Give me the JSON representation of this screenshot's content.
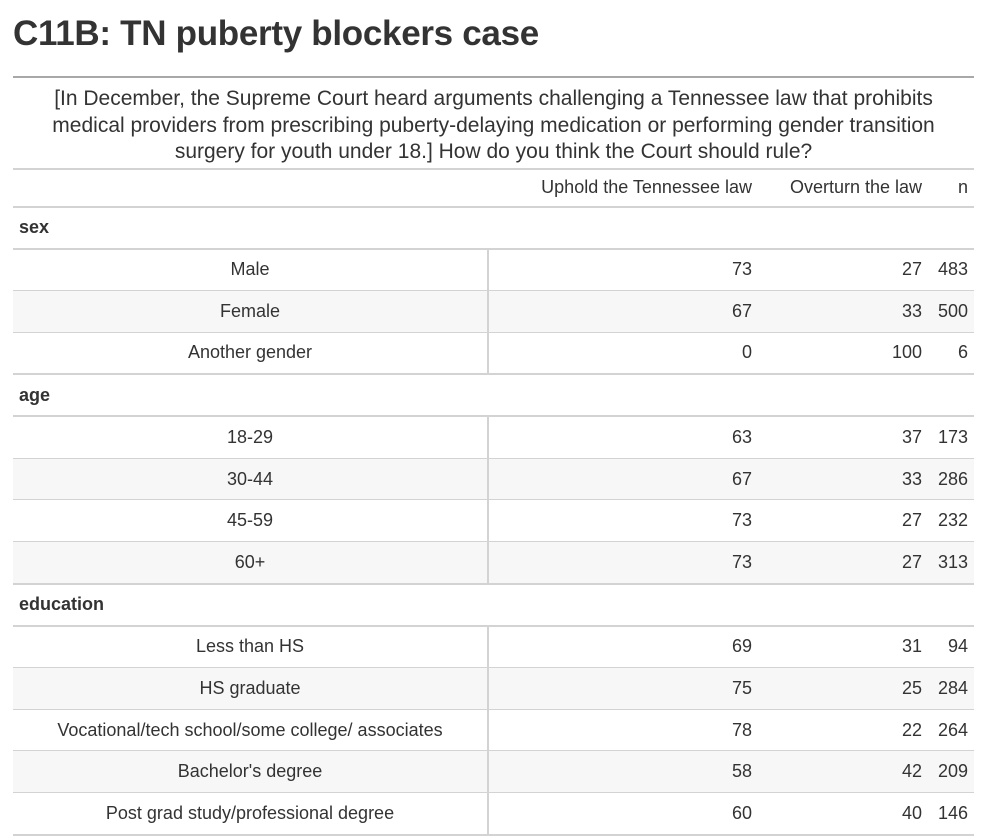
{
  "title": "C11B: TN puberty blockers case",
  "question": "[In December, the Supreme Court heard arguments challenging a Tennessee law that prohibits medical providers from prescribing puberty-delaying medication or performing gender transition surgery for youth under 18.] How do you think the Court should rule?",
  "columns": {
    "uphold": "Uphold the Tennessee law",
    "overturn": "Overturn the law",
    "n": "n"
  },
  "chart_data": {
    "type": "table",
    "title": "C11B: TN puberty blockers case",
    "subtitle": "[In December, the Supreme Court heard arguments challenging a Tennessee law that prohibits medical providers from prescribing puberty-delaying medication or performing gender transition surgery for youth under 18.] How do you think the Court should rule?",
    "columns": [
      "Uphold the Tennessee law",
      "Overturn the law",
      "n"
    ],
    "groups": [
      {
        "name": "sex",
        "rows": [
          {
            "label": "Male",
            "uphold": 73,
            "overturn": 27,
            "n": 483
          },
          {
            "label": "Female",
            "uphold": 67,
            "overturn": 33,
            "n": 500
          },
          {
            "label": "Another gender",
            "uphold": 0,
            "overturn": 100,
            "n": 6
          }
        ]
      },
      {
        "name": "age",
        "rows": [
          {
            "label": "18-29",
            "uphold": 63,
            "overturn": 37,
            "n": 173
          },
          {
            "label": "30-44",
            "uphold": 67,
            "overturn": 33,
            "n": 286
          },
          {
            "label": "45-59",
            "uphold": 73,
            "overturn": 27,
            "n": 232
          },
          {
            "label": "60+",
            "uphold": 73,
            "overturn": 27,
            "n": 313
          }
        ]
      },
      {
        "name": "education",
        "rows": [
          {
            "label": "Less than HS",
            "uphold": 69,
            "overturn": 31,
            "n": 94
          },
          {
            "label": "HS graduate",
            "uphold": 75,
            "overturn": 25,
            "n": 284
          },
          {
            "label": "Vocational/tech school/some college/ associates",
            "uphold": 78,
            "overturn": 22,
            "n": 264
          },
          {
            "label": "Bachelor's degree",
            "uphold": 58,
            "overturn": 42,
            "n": 209
          },
          {
            "label": "Post grad study/professional degree",
            "uphold": 60,
            "overturn": 40,
            "n": 146
          }
        ]
      }
    ]
  }
}
